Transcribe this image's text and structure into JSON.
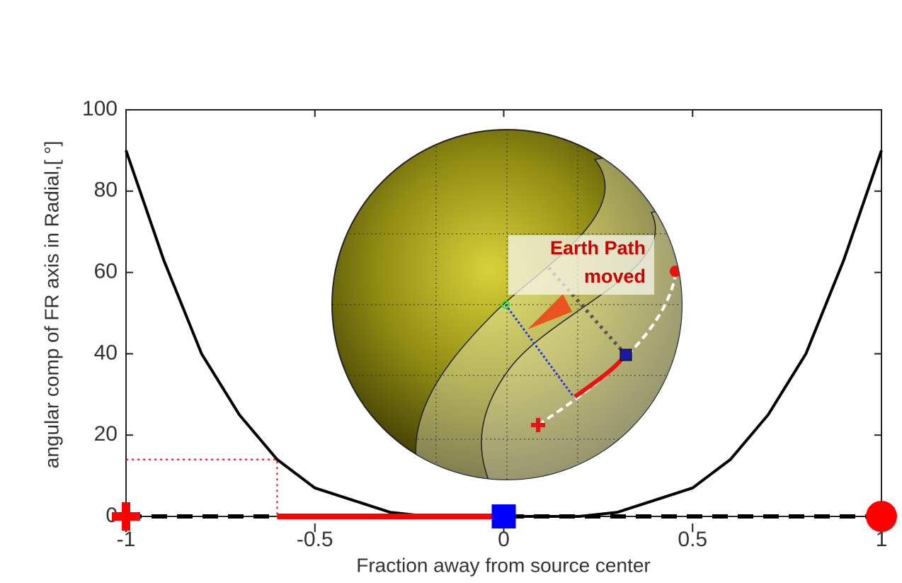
{
  "chart_data": {
    "type": "line",
    "xlabel": "Fraction away from source center",
    "ylabel": "angular comp of FR axis in Radial,[ °]",
    "xlim": [
      -1,
      1
    ],
    "ylim": [
      0,
      100
    ],
    "xticks": [
      -1,
      -0.5,
      0,
      0.5,
      1
    ],
    "yticks": [
      0,
      20,
      40,
      60,
      80,
      100
    ],
    "series": [
      {
        "color": "#000000",
        "style": "solid",
        "width": 4,
        "x": [
          -1,
          -0.9,
          -0.8,
          -0.7,
          -0.6,
          -0.5,
          -0.4,
          -0.3,
          -0.2,
          -0.1,
          0,
          0.1,
          0.2,
          0.3,
          0.4,
          0.5,
          0.6,
          0.7,
          0.8,
          0.9,
          1
        ],
        "values": [
          90,
          63,
          40,
          25,
          14,
          7,
          4,
          1,
          0,
          0,
          0,
          0,
          0,
          1,
          4,
          7,
          14,
          25,
          40,
          63,
          90
        ]
      },
      {
        "color": "#000000",
        "style": "dashed",
        "width": 6,
        "x": [
          -1,
          1
        ],
        "values": [
          0,
          0
        ]
      },
      {
        "color": "#ff0000",
        "style": "dotted",
        "width": 2,
        "x": [
          -1,
          -0.6,
          -0.6
        ],
        "values": [
          14,
          14,
          0
        ]
      },
      {
        "color": "#ff0000",
        "style": "solid",
        "width": 8,
        "x": [
          -0.6,
          0
        ],
        "values": [
          0,
          0
        ]
      }
    ],
    "points": [
      {
        "x": -1,
        "y": 0,
        "marker": "plus",
        "color": "#ff0000"
      },
      {
        "x": 0,
        "y": 0,
        "marker": "square",
        "color": "#0000ff"
      },
      {
        "x": 1,
        "y": 0,
        "marker": "circle",
        "color": "#ff0000"
      }
    ],
    "inset_annotation": [
      "Earth Path",
      "moved"
    ]
  }
}
